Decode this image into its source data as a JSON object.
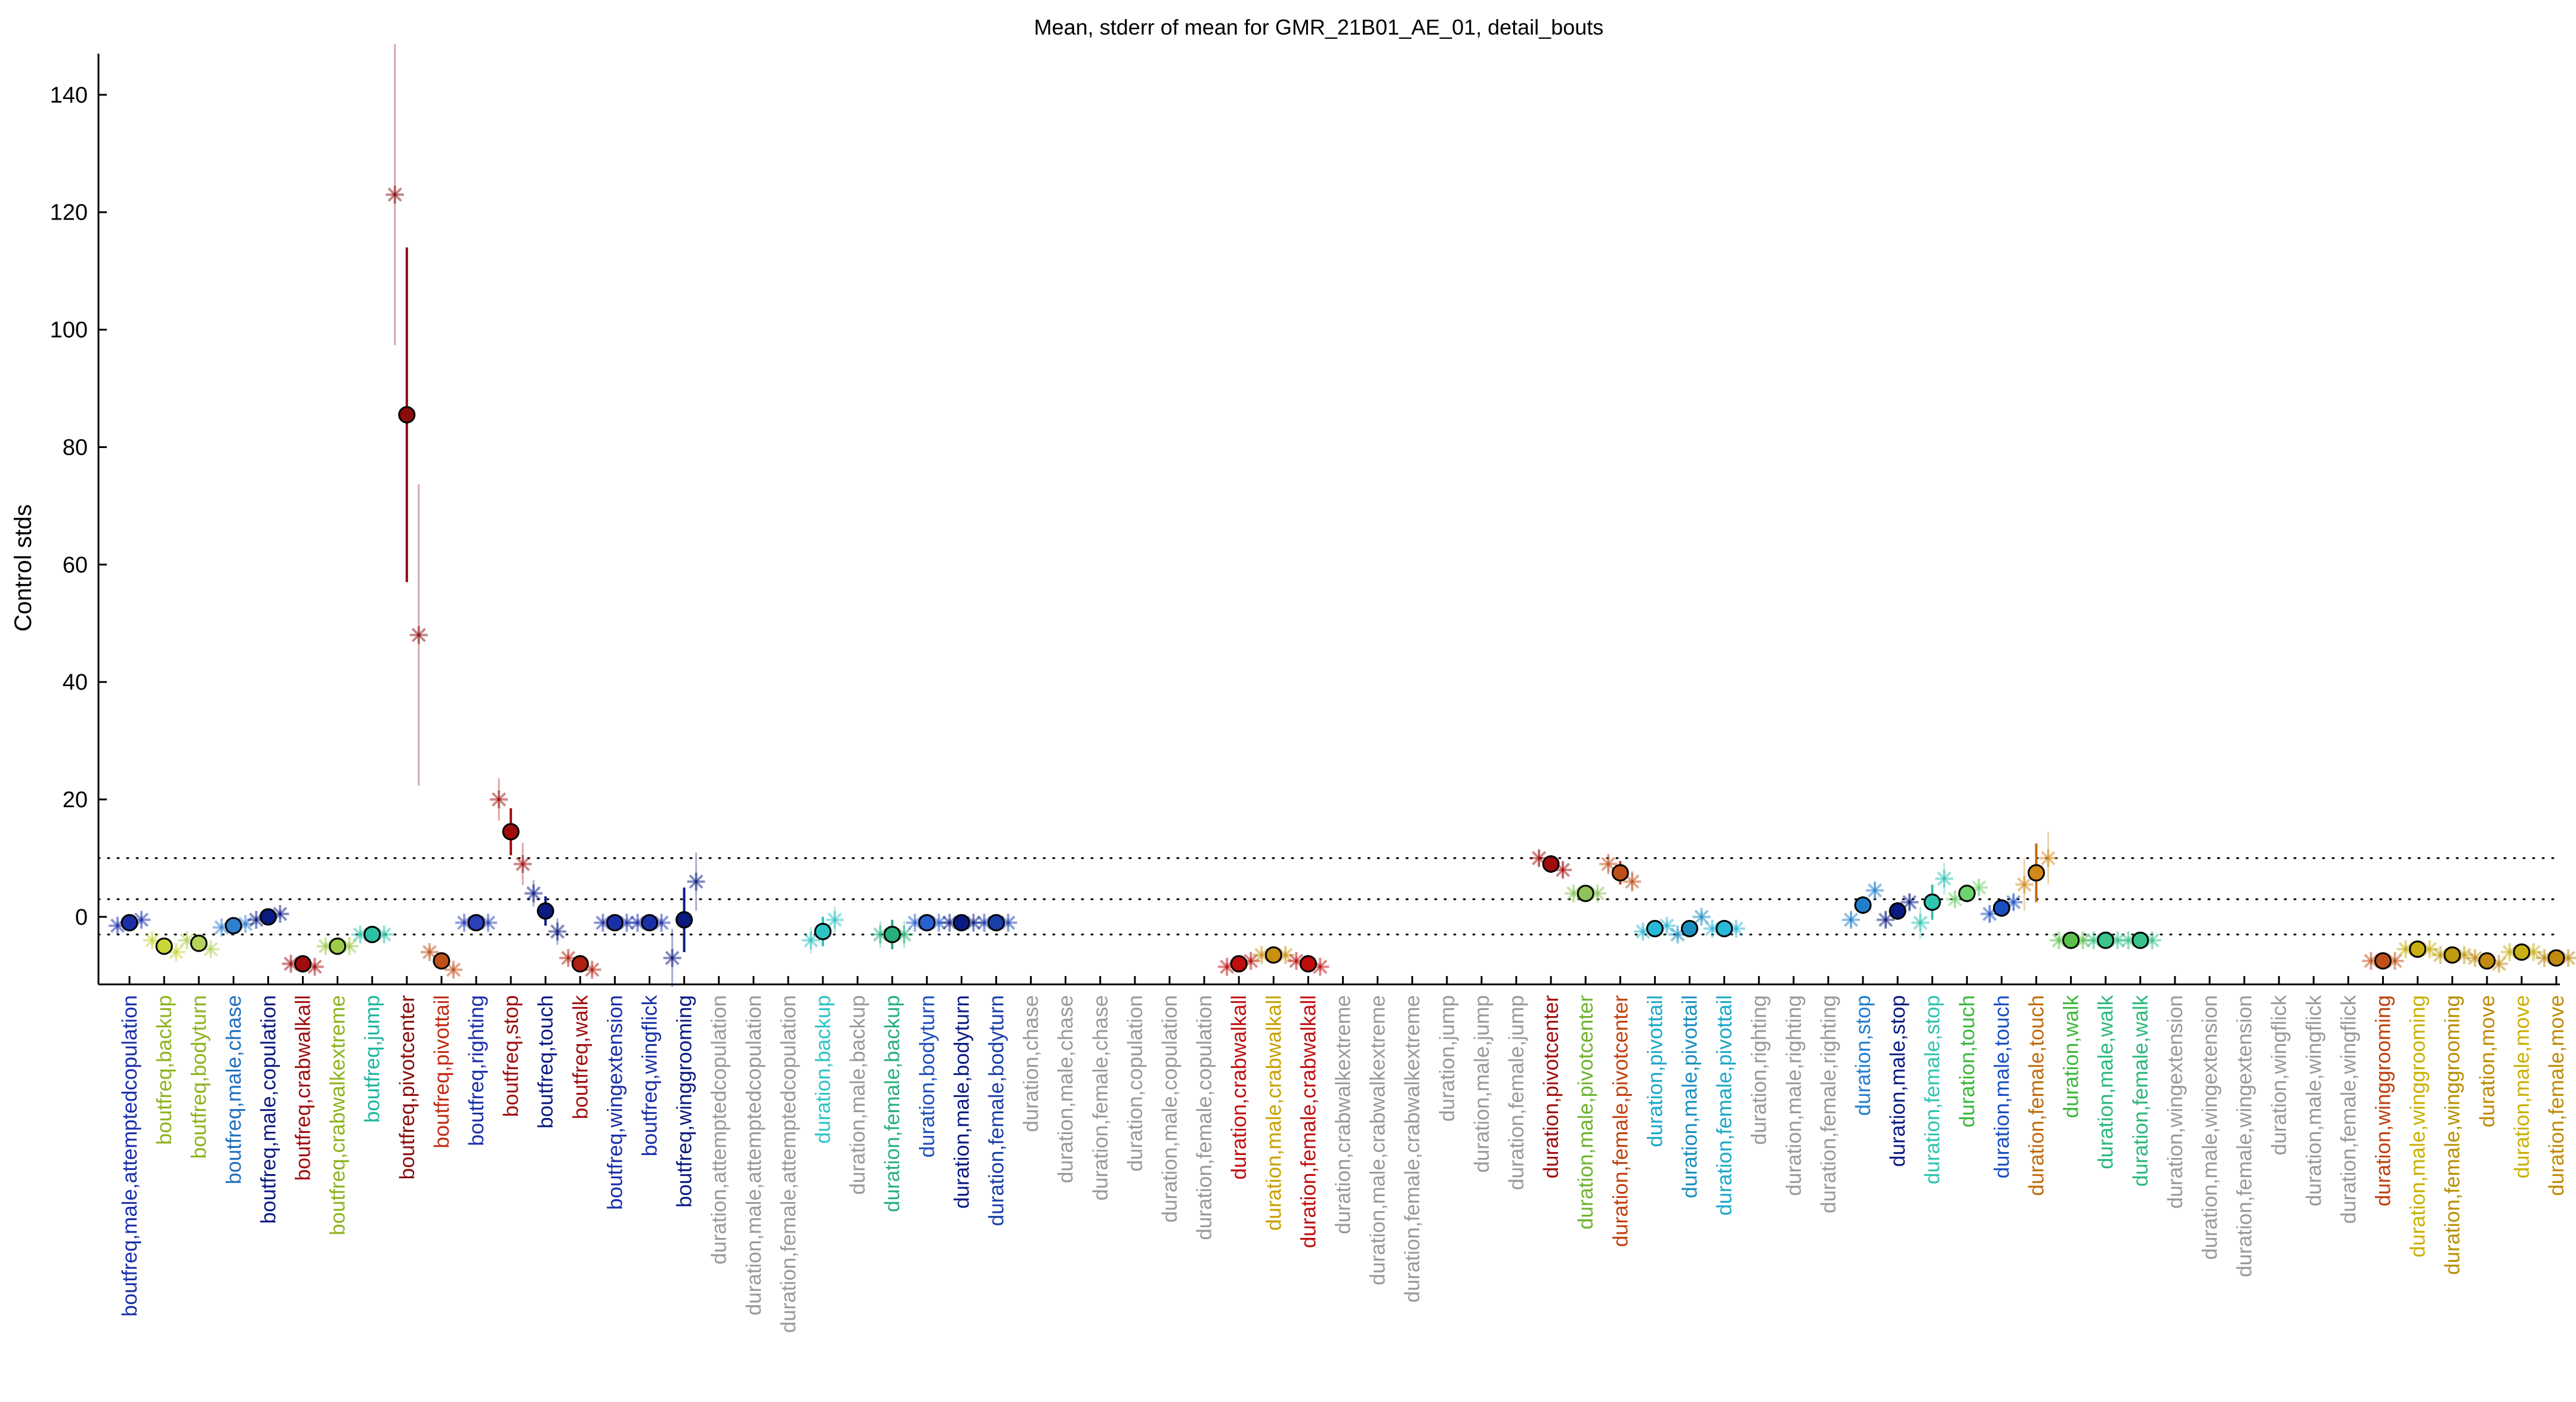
{
  "chart_data": {
    "type": "scatter",
    "title": "Mean, stderr of mean for GMR_21B01_AE_01, detail_bouts",
    "xlabel": "",
    "ylabel": "Control stds",
    "ylim": [
      -11.5,
      147
    ],
    "yticks": [
      0,
      20,
      40,
      60,
      80,
      100,
      120,
      140
    ],
    "reference_lines": [
      -3,
      3,
      10
    ],
    "grid": false,
    "legend": "none",
    "categories": [
      {
        "label": "boutfreq,male,attemptedcopulation",
        "color": "#1a2fa8",
        "mean": -1,
        "err": 0.8,
        "marker": "#1a2fa8",
        "reps": [
          -1.5,
          -0.5
        ]
      },
      {
        "label": "boutfreq,backup",
        "color": "#8db31e",
        "mean": -5,
        "err": 1,
        "marker": "#c9d63a",
        "reps": [
          -4,
          -6
        ]
      },
      {
        "label": "boutfreq,bodyturn",
        "color": "#8db31e",
        "mean": -4.5,
        "err": 1,
        "marker": "#b5d35a",
        "reps": [
          -4,
          -5.5
        ]
      },
      {
        "label": "boutfreq,male,chase",
        "color": "#1f6fbf",
        "mean": -1.5,
        "err": 0.8,
        "marker": "#2f7fcf",
        "reps": [
          -1.8,
          -1.2
        ]
      },
      {
        "label": "boutfreq,male,copulation",
        "color": "#0a1a80",
        "mean": 0,
        "err": 0.8,
        "marker": "#0a1a80",
        "reps": [
          -0.5,
          0.5
        ]
      },
      {
        "label": "boutfreq,crabwalkall",
        "color": "#a00d0d",
        "mean": -8,
        "err": 0.8,
        "marker": "#a00d0d",
        "reps": [
          -8,
          -8.5
        ]
      },
      {
        "label": "boutfreq,crabwalkextreme",
        "color": "#8db31e",
        "mean": -5,
        "err": 0.8,
        "marker": "#9ccb4a",
        "reps": [
          -5,
          -5
        ]
      },
      {
        "label": "boutfreq,jump",
        "color": "#1db5a0",
        "mean": -3,
        "err": 0.8,
        "marker": "#2cc1a5",
        "reps": [
          -3,
          -3
        ]
      },
      {
        "label": "boutfreq,pivotcenter",
        "color": "#8a0d0d",
        "mean": 85.5,
        "err": 28.5,
        "marker": "#8a0d0d",
        "reps": [
          123,
          48
        ]
      },
      {
        "label": "boutfreq,pivottail",
        "color": "#c02a10",
        "mean": -7.5,
        "err": 1,
        "marker": "#c0501a",
        "reps": [
          -6,
          -9
        ]
      },
      {
        "label": "boutfreq,righting",
        "color": "#1a2fa8",
        "mean": -1,
        "err": 0.8,
        "marker": "#2a3fb8",
        "reps": [
          -1,
          -1
        ]
      },
      {
        "label": "boutfreq,stop",
        "color": "#a00d0d",
        "mean": 14.5,
        "err": 4,
        "marker": "#a00d0d",
        "reps": [
          20,
          9
        ]
      },
      {
        "label": "boutfreq,touch",
        "color": "#0a1a80",
        "mean": 1,
        "err": 2.5,
        "marker": "#0a1a80",
        "reps": [
          4,
          -2.5
        ]
      },
      {
        "label": "boutfreq,walk",
        "color": "#a00d0d",
        "mean": -8,
        "err": 1,
        "marker": "#b02010",
        "reps": [
          -7,
          -9
        ]
      },
      {
        "label": "boutfreq,wingextension",
        "color": "#1a2fa8",
        "mean": -1,
        "err": 0.8,
        "marker": "#1a2fa8",
        "reps": [
          -1,
          -1
        ]
      },
      {
        "label": "boutfreq,wingflick",
        "color": "#1a2fa8",
        "mean": -1,
        "err": 0.8,
        "marker": "#1a2fa8",
        "reps": [
          -1,
          -1
        ]
      },
      {
        "label": "boutfreq,winggrooming",
        "color": "#0a1a80",
        "mean": -0.5,
        "err": 5.5,
        "marker": "#0a1a80",
        "reps": [
          -7,
          6
        ]
      },
      {
        "label": "duration,attemptedcopulation",
        "color": "#999999",
        "mean": null
      },
      {
        "label": "duration,male,attemptedcopulation",
        "color": "#999999",
        "mean": null
      },
      {
        "label": "duration,female,attemptedcopulation",
        "color": "#999999",
        "mean": null
      },
      {
        "label": "duration,backup",
        "color": "#2ec4c4",
        "mean": -2.5,
        "err": 2.5,
        "marker": "#2ec4c4",
        "reps": [
          -4,
          -0.5
        ]
      },
      {
        "label": "duration,male,backup",
        "color": "#999999",
        "mean": null
      },
      {
        "label": "duration,female,backup",
        "color": "#28b07a",
        "mean": -3,
        "err": 2.5,
        "marker": "#28b07a",
        "reps": [
          -3,
          -3
        ]
      },
      {
        "label": "duration,bodyturn",
        "color": "#1f4fbf",
        "mean": -1,
        "err": 0.8,
        "marker": "#2a5fcf",
        "reps": [
          -1,
          -1
        ]
      },
      {
        "label": "duration,male,bodyturn",
        "color": "#0a1a80",
        "mean": -1,
        "err": 0.8,
        "marker": "#0a1a80",
        "reps": [
          -1,
          -1
        ]
      },
      {
        "label": "duration,female,bodyturn",
        "color": "#1a3fa8",
        "mean": -1,
        "err": 0.8,
        "marker": "#1a3fa8",
        "reps": [
          -1,
          -1
        ]
      },
      {
        "label": "duration,chase",
        "color": "#999999",
        "mean": null
      },
      {
        "label": "duration,male,chase",
        "color": "#999999",
        "mean": null
      },
      {
        "label": "duration,female,chase",
        "color": "#999999",
        "mean": null
      },
      {
        "label": "duration,copulation",
        "color": "#999999",
        "mean": null
      },
      {
        "label": "duration,male,copulation",
        "color": "#999999",
        "mean": null
      },
      {
        "label": "duration,female,copulation",
        "color": "#999999",
        "mean": null
      },
      {
        "label": "duration,crabwalkall",
        "color": "#c00d0d",
        "mean": -8,
        "err": 0.8,
        "marker": "#c00d0d",
        "reps": [
          -8.5,
          -7.5
        ]
      },
      {
        "label": "duration,male,crabwalkall",
        "color": "#c9a000",
        "mean": -6.5,
        "err": 0.8,
        "marker": "#c98f10",
        "reps": [
          -6.5,
          -6.5
        ]
      },
      {
        "label": "duration,female,crabwalkall",
        "color": "#c00d0d",
        "mean": -8,
        "err": 0.8,
        "marker": "#c00d0d",
        "reps": [
          -7.5,
          -8.5
        ]
      },
      {
        "label": "duration,crabwalkextreme",
        "color": "#999999",
        "mean": null
      },
      {
        "label": "duration,male,crabwalkextreme",
        "color": "#999999",
        "mean": null
      },
      {
        "label": "duration,female,crabwalkextreme",
        "color": "#999999",
        "mean": null
      },
      {
        "label": "duration,jump",
        "color": "#999999",
        "mean": null
      },
      {
        "label": "duration,male,jump",
        "color": "#999999",
        "mean": null
      },
      {
        "label": "duration,female,jump",
        "color": "#999999",
        "mean": null
      },
      {
        "label": "duration,pivotcenter",
        "color": "#a00d0d",
        "mean": 9,
        "err": 1.5,
        "marker": "#a00d0d",
        "reps": [
          10,
          8
        ]
      },
      {
        "label": "duration,male,pivotcenter",
        "color": "#6db32e",
        "mean": 4,
        "err": 1,
        "marker": "#8dc35a",
        "reps": [
          4,
          4
        ]
      },
      {
        "label": "duration,female,pivotcenter",
        "color": "#c0400d",
        "mean": 7.5,
        "err": 2,
        "marker": "#c0501a",
        "reps": [
          9,
          6
        ]
      },
      {
        "label": "duration,pivottail",
        "color": "#1aa8c8",
        "mean": -2,
        "err": 1,
        "marker": "#2ab8d8",
        "reps": [
          -2.5,
          -1.5
        ]
      },
      {
        "label": "duration,male,pivottail",
        "color": "#1a8fbf",
        "mean": -2,
        "err": 1,
        "marker": "#1a8fbf",
        "reps": [
          -3,
          0
        ]
      },
      {
        "label": "duration,female,pivottail",
        "color": "#1aa8c8",
        "mean": -2,
        "err": 0.8,
        "marker": "#2ab8d8",
        "reps": [
          -2,
          -2
        ]
      },
      {
        "label": "duration,righting",
        "color": "#999999",
        "mean": null
      },
      {
        "label": "duration,male,righting",
        "color": "#999999",
        "mean": null
      },
      {
        "label": "duration,female,righting",
        "color": "#999999",
        "mean": null
      },
      {
        "label": "duration,stop",
        "color": "#1f7fcf",
        "mean": 2,
        "err": 1.5,
        "marker": "#1f7fcf",
        "reps": [
          -0.5,
          4.5
        ]
      },
      {
        "label": "duration,male,stop",
        "color": "#0a1a80",
        "mean": 1,
        "err": 1.5,
        "marker": "#0a1a80",
        "reps": [
          -0.5,
          2.5
        ]
      },
      {
        "label": "duration,female,stop",
        "color": "#2ec4b0",
        "mean": 2.5,
        "err": 3,
        "marker": "#2ec4b0",
        "reps": [
          -1,
          6.5
        ]
      },
      {
        "label": "duration,touch",
        "color": "#3ab83a",
        "mean": 4,
        "err": 1.5,
        "marker": "#6dd36d",
        "reps": [
          3,
          5
        ]
      },
      {
        "label": "duration,male,touch",
        "color": "#1a4fbf",
        "mean": 1.5,
        "err": 1.5,
        "marker": "#1a4fbf",
        "reps": [
          0.5,
          2.5
        ]
      },
      {
        "label": "duration,female,touch",
        "color": "#c06a0d",
        "mean": 7.5,
        "err": 5,
        "marker": "#d08a1a",
        "reps": [
          5.5,
          10
        ]
      },
      {
        "label": "duration,walk",
        "color": "#3ab83a",
        "mean": -4,
        "err": 0.8,
        "marker": "#5cc34a",
        "reps": [
          -4,
          -4
        ]
      },
      {
        "label": "duration,male,walk",
        "color": "#2ab87a",
        "mean": -4,
        "err": 0.8,
        "marker": "#3ac38a",
        "reps": [
          -4,
          -4
        ]
      },
      {
        "label": "duration,female,walk",
        "color": "#2ab87a",
        "mean": -4,
        "err": 0.8,
        "marker": "#3ac38a",
        "reps": [
          -4,
          -4
        ]
      },
      {
        "label": "duration,wingextension",
        "color": "#999999",
        "mean": null
      },
      {
        "label": "duration,male,wingextension",
        "color": "#999999",
        "mean": null
      },
      {
        "label": "duration,female,wingextension",
        "color": "#999999",
        "mean": null
      },
      {
        "label": "duration,wingflick",
        "color": "#999999",
        "mean": null
      },
      {
        "label": "duration,male,wingflick",
        "color": "#999999",
        "mean": null
      },
      {
        "label": "duration,female,wingflick",
        "color": "#999999",
        "mean": null
      },
      {
        "label": "duration,winggrooming",
        "color": "#c0400d",
        "mean": -7.5,
        "err": 0.8,
        "marker": "#c0501a",
        "reps": [
          -7.5,
          -7.5
        ]
      },
      {
        "label": "duration,male,winggrooming",
        "color": "#c9b000",
        "mean": -5.5,
        "err": 0.8,
        "marker": "#c9b010",
        "reps": [
          -5.5,
          -5.5
        ]
      },
      {
        "label": "duration,female,winggrooming",
        "color": "#b89000",
        "mean": -6.5,
        "err": 0.8,
        "marker": "#c09a10",
        "reps": [
          -6.5,
          -6.5
        ]
      },
      {
        "label": "duration,move",
        "color": "#c08a00",
        "mean": -7.5,
        "err": 0.8,
        "marker": "#c08a10",
        "reps": [
          -7,
          -8
        ]
      },
      {
        "label": "duration,male,move",
        "color": "#c9b000",
        "mean": -6,
        "err": 0.8,
        "marker": "#c9b010",
        "reps": [
          -6,
          -6
        ]
      },
      {
        "label": "duration,female,move",
        "color": "#c08a00",
        "mean": -7,
        "err": 0.8,
        "marker": "#c08a10",
        "reps": [
          -7,
          -7
        ]
      }
    ]
  }
}
